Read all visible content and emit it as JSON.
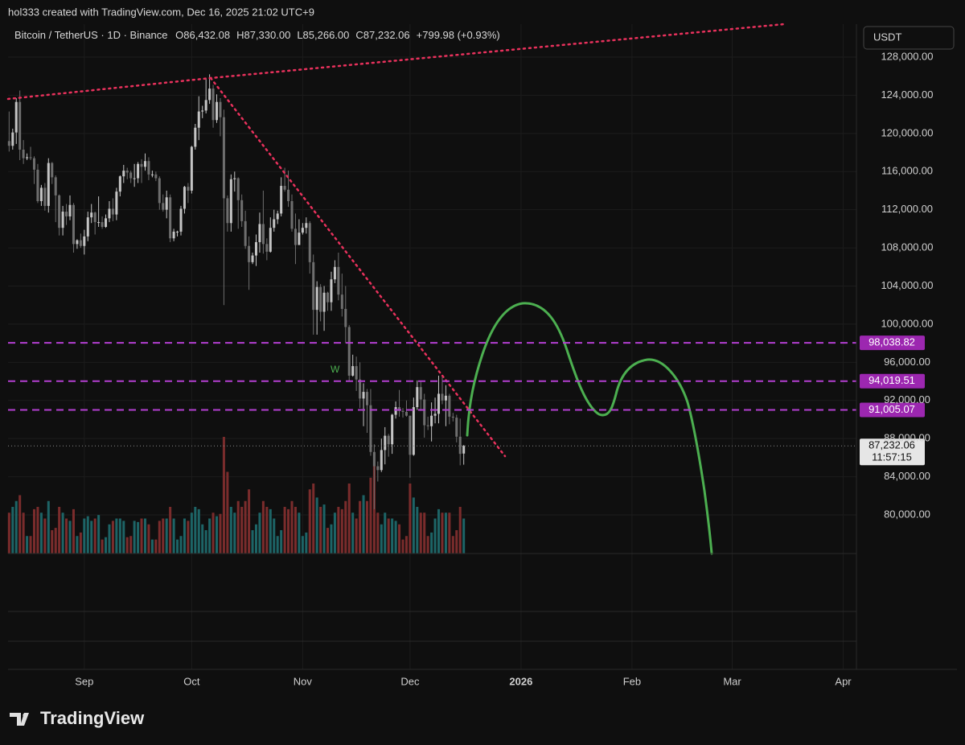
{
  "chart_data": {
    "type": "candlestick",
    "attribution": "hol333 created with TradingView.com, Dec 16, 2025 21:02 UTC+9",
    "title": "Bitcoin / TetherUS · 1D · Binance",
    "legend_values": [
      "O86,432.08",
      "H87,330.00",
      "L85,266.00",
      "C87,232.06",
      "+799.98 (+0.93%)"
    ],
    "currency": "USDT",
    "brand": "TradingView",
    "annotation": "W",
    "up_color": "#c4c4c4",
    "down_color": "#6e6e6e",
    "volume_up_color": "#1d6466",
    "volume_down_color": "#7a2c2c",
    "level_color": "#b33fd0",
    "ylim": [
      75950,
      131460
    ],
    "yticks": [
      {
        "value": 128000,
        "label": "128,000.00"
      },
      {
        "value": 124000,
        "label": "124,000.00"
      },
      {
        "value": 120000,
        "label": "120,000.00"
      },
      {
        "value": 116000,
        "label": "116,000.00"
      },
      {
        "value": 112000,
        "label": "112,000.00"
      },
      {
        "value": 108000,
        "label": "108,000.00"
      },
      {
        "value": 104000,
        "label": "104,000.00"
      },
      {
        "value": 100000,
        "label": "100,000.00"
      },
      {
        "value": 96000,
        "label": "96,000.00"
      },
      {
        "value": 92000,
        "label": "92,000.00"
      },
      {
        "value": 88000,
        "label": "88,000.00"
      },
      {
        "value": 84000,
        "label": "84,000.00"
      },
      {
        "value": 80000,
        "label": "80,000.00"
      }
    ],
    "xlim": [
      -0.3,
      236.7
    ],
    "xticks": [
      {
        "value": 21,
        "label": "Sep"
      },
      {
        "value": 51,
        "label": "Oct"
      },
      {
        "value": 82,
        "label": "Nov"
      },
      {
        "value": 112,
        "label": "Dec"
      },
      {
        "value": 143,
        "label": "2026"
      },
      {
        "value": 174,
        "label": "Feb"
      },
      {
        "value": 202,
        "label": "Mar"
      },
      {
        "value": 233,
        "label": "Apr"
      }
    ],
    "levels": [
      {
        "value": 98038.82,
        "label": "98,038.82"
      },
      {
        "value": 94019.51,
        "label": "94,019.51"
      },
      {
        "value": 91005.07,
        "label": "91,005.07"
      }
    ],
    "price_line": {
      "value": 87232.06,
      "label": "87,232.06",
      "countdown": "11:57:15"
    },
    "candles": [
      [
        119200,
        122300,
        118100,
        118700
      ],
      [
        118700,
        120500,
        118300,
        120100
      ],
      [
        120100,
        123700,
        118900,
        123300
      ],
      [
        123300,
        124500,
        117200,
        118300
      ],
      [
        118300,
        119300,
        116800,
        117400
      ],
      [
        117400,
        117900,
        117200,
        117500
      ],
      [
        117500,
        118600,
        117200,
        117400
      ],
      [
        117400,
        117600,
        114700,
        116200
      ],
      [
        116200,
        116800,
        112700,
        112900
      ],
      [
        112900,
        114600,
        112400,
        114300
      ],
      [
        114300,
        114800,
        111900,
        112400
      ],
      [
        112400,
        117400,
        111700,
        116900
      ],
      [
        116900,
        117000,
        114700,
        115400
      ],
      [
        115400,
        115600,
        110700,
        113500
      ],
      [
        113500,
        113600,
        109300,
        110100
      ],
      [
        110100,
        112400,
        109300,
        111800
      ],
      [
        111800,
        112600,
        110400,
        111300
      ],
      [
        111300,
        113500,
        110900,
        112500
      ],
      [
        112500,
        112700,
        107500,
        108400
      ],
      [
        108400,
        108900,
        107900,
        108800
      ],
      [
        108800,
        109500,
        108000,
        108200
      ],
      [
        108200,
        109900,
        107300,
        109200
      ],
      [
        109200,
        111800,
        108700,
        111200
      ],
      [
        111200,
        112600,
        110600,
        111700
      ],
      [
        111700,
        111800,
        109400,
        110700
      ],
      [
        110700,
        113400,
        110200,
        110700
      ],
      [
        110700,
        111300,
        110000,
        110200
      ],
      [
        110200,
        111500,
        110100,
        111100
      ],
      [
        111100,
        112900,
        110700,
        112100
      ],
      [
        112100,
        113200,
        110800,
        111500
      ],
      [
        111500,
        114300,
        110900,
        113900
      ],
      [
        113900,
        115600,
        113400,
        115500
      ],
      [
        115500,
        116700,
        114800,
        116100
      ],
      [
        116100,
        116400,
        115200,
        115900
      ],
      [
        115900,
        116100,
        114800,
        115300
      ],
      [
        115300,
        116800,
        114400,
        115300
      ],
      [
        115300,
        117000,
        114800,
        116800
      ],
      [
        116800,
        117300,
        114800,
        116500
      ],
      [
        116500,
        117900,
        116100,
        117100
      ],
      [
        117100,
        117500,
        115100,
        115700
      ],
      [
        115700,
        116100,
        115400,
        115700
      ],
      [
        115700,
        116000,
        115000,
        115300
      ],
      [
        115300,
        115500,
        112000,
        112700
      ],
      [
        112700,
        113600,
        111800,
        112000
      ],
      [
        112000,
        114000,
        111100,
        113300
      ],
      [
        113300,
        113600,
        108600,
        109000
      ],
      [
        109000,
        110000,
        108700,
        109700
      ],
      [
        109700,
        109800,
        109200,
        109700
      ],
      [
        109700,
        112400,
        109300,
        112100
      ],
      [
        112100,
        114500,
        111600,
        114400
      ],
      [
        114400,
        114800,
        112700,
        114000
      ],
      [
        114000,
        118700,
        113700,
        118600
      ],
      [
        118600,
        121000,
        118300,
        120600
      ],
      [
        120600,
        123900,
        119300,
        122300
      ],
      [
        122300,
        122900,
        121600,
        122400
      ],
      [
        122400,
        125700,
        122100,
        123500
      ],
      [
        123500,
        126200,
        123100,
        124700
      ],
      [
        124700,
        125100,
        120600,
        121400
      ],
      [
        121400,
        124100,
        121100,
        123300
      ],
      [
        123300,
        123700,
        119700,
        121700
      ],
      [
        121700,
        122500,
        102000,
        113200
      ],
      [
        113200,
        113500,
        109700,
        110600
      ],
      [
        110600,
        115700,
        109700,
        115200
      ],
      [
        115200,
        116000,
        113900,
        115300
      ],
      [
        115300,
        115400,
        110000,
        113000
      ],
      [
        113000,
        113600,
        110200,
        110800
      ],
      [
        110800,
        111900,
        107900,
        108200
      ],
      [
        108200,
        109200,
        103600,
        106500
      ],
      [
        106500,
        107500,
        106300,
        107200
      ],
      [
        107200,
        109400,
        106100,
        108600
      ],
      [
        108600,
        111700,
        107500,
        110500
      ],
      [
        110500,
        114000,
        107400,
        108400
      ],
      [
        108400,
        109000,
        106700,
        107600
      ],
      [
        107600,
        111200,
        107500,
        110100
      ],
      [
        110100,
        112000,
        109700,
        111000
      ],
      [
        111000,
        111900,
        110500,
        111600
      ],
      [
        111600,
        115400,
        111300,
        114500
      ],
      [
        114500,
        116400,
        113900,
        114100
      ],
      [
        114100,
        116100,
        112300,
        112900
      ],
      [
        112900,
        113600,
        109700,
        110000
      ],
      [
        110000,
        111600,
        106300,
        108300
      ],
      [
        108300,
        111000,
        108300,
        109600
      ],
      [
        109600,
        110600,
        109400,
        110100
      ],
      [
        110100,
        111200,
        109500,
        110600
      ],
      [
        110600,
        110800,
        105300,
        106500
      ],
      [
        106500,
        107300,
        98900,
        101500
      ],
      [
        101500,
        104500,
        98900,
        103900
      ],
      [
        103900,
        104200,
        100300,
        101300
      ],
      [
        101300,
        104000,
        99300,
        103300
      ],
      [
        103300,
        103400,
        101400,
        102300
      ],
      [
        102300,
        105500,
        101400,
        104700
      ],
      [
        104700,
        106700,
        104300,
        106000
      ],
      [
        106000,
        107500,
        102500,
        103100
      ],
      [
        103100,
        105300,
        100800,
        101600
      ],
      [
        101600,
        104000,
        98000,
        99700
      ],
      [
        99700,
        99900,
        94000,
        94600
      ],
      [
        94600,
        96800,
        94500,
        95600
      ],
      [
        95600,
        96600,
        93000,
        94200
      ],
      [
        94200,
        96000,
        91200,
        92200
      ],
      [
        92200,
        93800,
        89300,
        92900
      ],
      [
        92900,
        93200,
        88600,
        91500
      ],
      [
        91500,
        93200,
        86200,
        86600
      ],
      [
        86600,
        87400,
        80600,
        85100
      ],
      [
        85100,
        85600,
        83500,
        84700
      ],
      [
        84700,
        88000,
        84500,
        86800
      ],
      [
        86800,
        89200,
        85300,
        88300
      ],
      [
        88300,
        88500,
        86100,
        87400
      ],
      [
        87400,
        90600,
        86400,
        90500
      ],
      [
        90500,
        91900,
        90100,
        91300
      ],
      [
        91300,
        93100,
        90300,
        90900
      ],
      [
        90900,
        91200,
        90200,
        90800
      ],
      [
        90800,
        92000,
        90300,
        90400
      ],
      [
        90400,
        90400,
        83900,
        86300
      ],
      [
        86300,
        92300,
        86200,
        91300
      ],
      [
        91300,
        94100,
        91000,
        93400
      ],
      [
        93400,
        94000,
        90900,
        92100
      ],
      [
        92100,
        92700,
        88100,
        89400
      ],
      [
        89400,
        90300,
        88900,
        89300
      ],
      [
        89300,
        91800,
        87700,
        90400
      ],
      [
        90400,
        92300,
        89600,
        90600
      ],
      [
        90600,
        94600,
        89600,
        92700
      ],
      [
        92700,
        94500,
        91600,
        92000
      ],
      [
        92000,
        93600,
        89300,
        92500
      ],
      [
        92500,
        92700,
        89500,
        90300
      ],
      [
        90300,
        90700,
        89800,
        90200
      ],
      [
        90200,
        90500,
        87600,
        88200
      ],
      [
        88200,
        90100,
        85200,
        86400
      ],
      [
        86432.08,
        87330,
        85266,
        87232.06
      ]
    ],
    "volume": [
      35,
      40,
      45,
      50,
      35,
      15,
      15,
      38,
      40,
      35,
      30,
      45,
      20,
      22,
      40,
      35,
      30,
      28,
      38,
      15,
      18,
      30,
      32,
      28,
      30,
      33,
      12,
      14,
      25,
      28,
      30,
      30,
      28,
      14,
      15,
      28,
      27,
      30,
      30,
      25,
      12,
      12,
      28,
      30,
      30,
      40,
      30,
      12,
      15,
      30,
      28,
      35,
      40,
      38,
      25,
      20,
      30,
      35,
      32,
      34,
      100,
      70,
      40,
      35,
      45,
      40,
      45,
      55,
      20,
      25,
      35,
      45,
      40,
      38,
      30,
      15,
      20,
      40,
      38,
      45,
      40,
      35,
      15,
      18,
      55,
      60,
      48,
      40,
      42,
      22,
      25,
      35,
      40,
      38,
      45,
      60,
      35,
      30,
      45,
      50,
      45,
      65,
      75,
      35,
      25,
      35,
      30,
      30,
      28,
      25,
      12,
      15,
      60,
      48,
      40,
      35,
      35,
      15,
      18,
      30,
      38,
      35,
      35,
      35,
      15,
      20,
      40,
      30
    ]
  }
}
